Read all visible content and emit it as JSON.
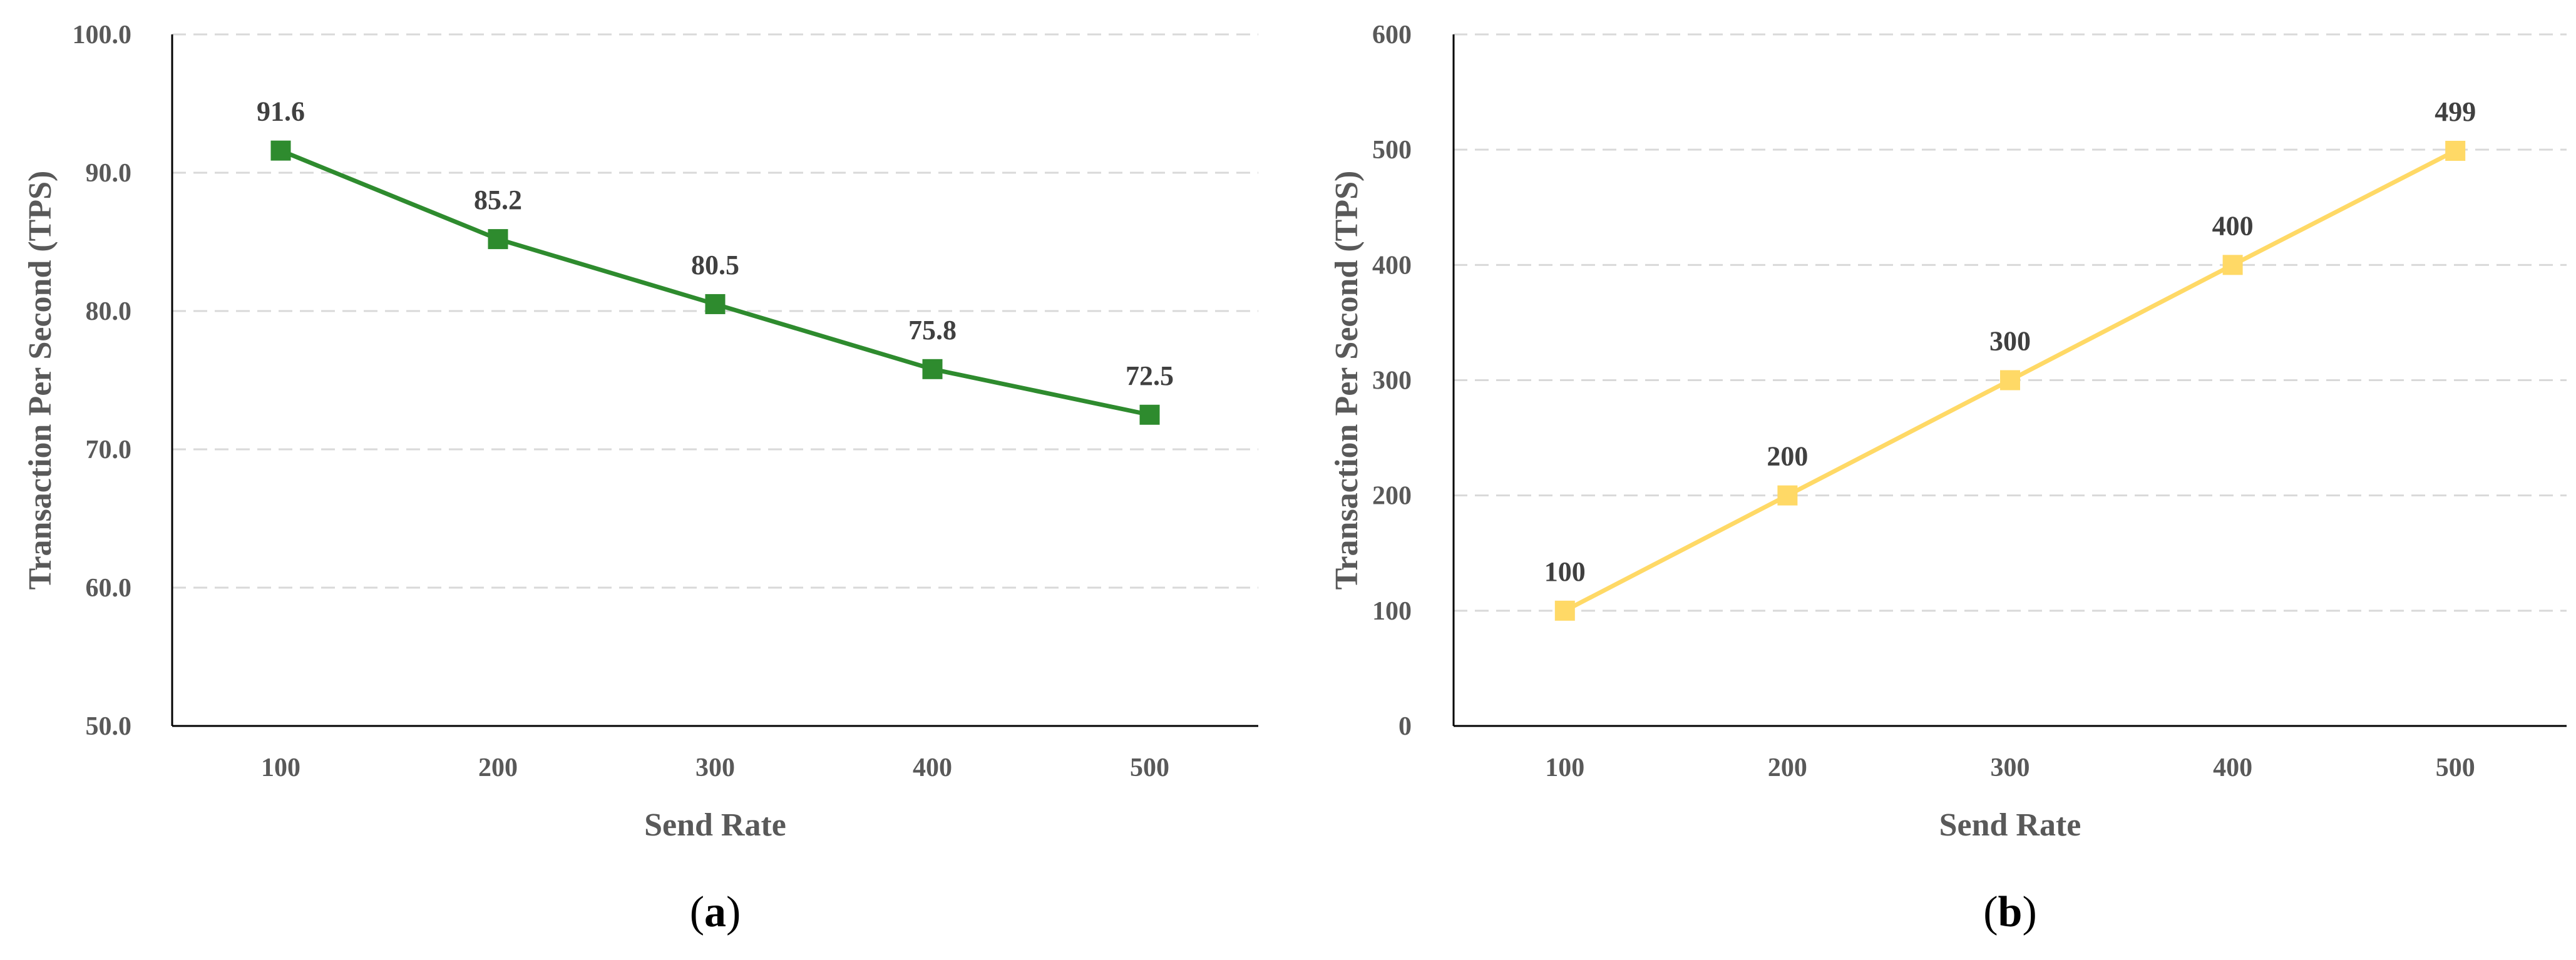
{
  "chart_data": [
    {
      "type": "line",
      "panel_label": "a",
      "categories": [
        "100",
        "200",
        "300",
        "400",
        "500"
      ],
      "series": [
        {
          "values": [
            91.6,
            85.2,
            80.5,
            75.8,
            72.5
          ],
          "color": "#2e8b2e",
          "marker": "square"
        }
      ],
      "data_labels": [
        "91.6",
        "85.2",
        "80.5",
        "75.8",
        "72.5"
      ],
      "xlabel": "Send Rate",
      "ylabel": "Transaction Per Second (TPS)",
      "ylim": [
        50,
        100
      ],
      "yticks": [
        "50.0",
        "60.0",
        "70.0",
        "80.0",
        "90.0",
        "100.0"
      ],
      "grid": "horizontal dashed"
    },
    {
      "type": "line",
      "panel_label": "b",
      "categories": [
        "100",
        "200",
        "300",
        "400",
        "500"
      ],
      "series": [
        {
          "values": [
            100,
            200,
            300,
            400,
            499
          ],
          "color": "#ffd966",
          "marker": "square"
        }
      ],
      "data_labels": [
        "100",
        "200",
        "300",
        "400",
        "499"
      ],
      "xlabel": "Send Rate",
      "ylabel": "Transaction Per Second (TPS)",
      "ylim": [
        0,
        600
      ],
      "yticks": [
        "0",
        "100",
        "200",
        "300",
        "400",
        "500",
        "600"
      ],
      "grid": "horizontal dashed"
    }
  ]
}
